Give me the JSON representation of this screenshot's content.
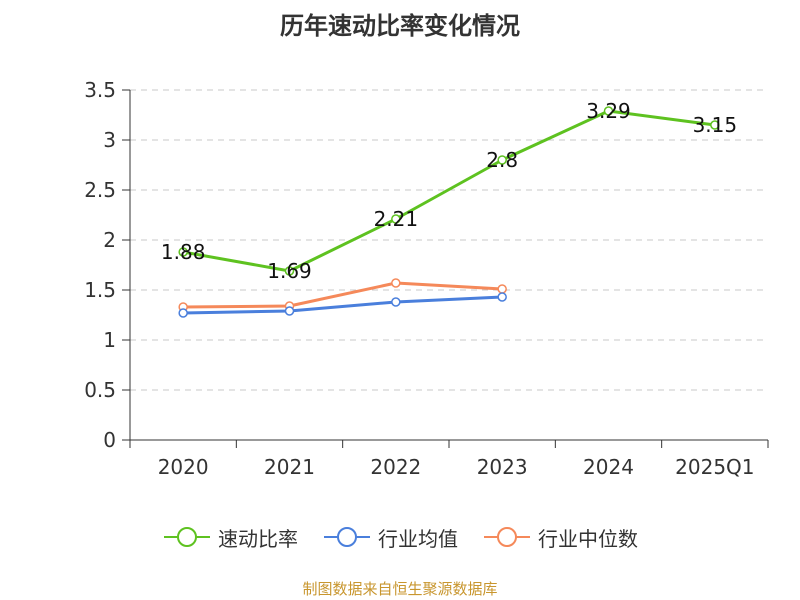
{
  "title": "历年速动比率变化情况",
  "source": "制图数据来自恒生聚源数据库",
  "chart_data": {
    "type": "line",
    "title": "历年速动比率变化情况",
    "categories": [
      "2020",
      "2021",
      "2022",
      "2023",
      "2024",
      "2025Q1"
    ],
    "ylim": [
      0,
      3.5
    ],
    "yticks": [
      "0",
      "0.5",
      "1",
      "1.5",
      "2",
      "2.5",
      "3",
      "3.5"
    ],
    "grid": true,
    "legend_position": "bottom",
    "series": [
      {
        "name": "速动比率",
        "color": "#5ec220",
        "values": [
          1.88,
          1.69,
          2.21,
          2.8,
          3.29,
          3.15
        ],
        "labels": [
          "1.88",
          "1.69",
          "2.21",
          "2.8",
          "3.29",
          "3.15"
        ]
      },
      {
        "name": "行业均值",
        "color": "#4a7fdc",
        "values": [
          1.27,
          1.29,
          1.38,
          1.43,
          null,
          null
        ],
        "labels": []
      },
      {
        "name": "行业中位数",
        "color": "#f5895a",
        "values": [
          1.33,
          1.34,
          1.57,
          1.51,
          null,
          null
        ],
        "labels": []
      }
    ]
  }
}
